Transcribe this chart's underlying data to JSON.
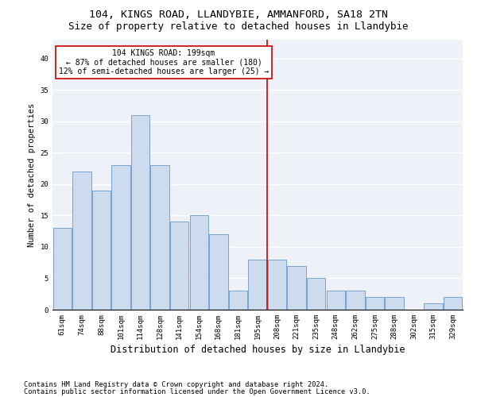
{
  "title1": "104, KINGS ROAD, LLANDYBIE, AMMANFORD, SA18 2TN",
  "title2": "Size of property relative to detached houses in Llandybie",
  "xlabel": "Distribution of detached houses by size in Llandybie",
  "ylabel": "Number of detached properties",
  "categories": [
    "61sqm",
    "74sqm",
    "88sqm",
    "101sqm",
    "114sqm",
    "128sqm",
    "141sqm",
    "154sqm",
    "168sqm",
    "181sqm",
    "195sqm",
    "208sqm",
    "221sqm",
    "235sqm",
    "248sqm",
    "262sqm",
    "275sqm",
    "288sqm",
    "302sqm",
    "315sqm",
    "329sqm"
  ],
  "values": [
    13,
    22,
    19,
    23,
    31,
    23,
    14,
    15,
    12,
    3,
    8,
    8,
    7,
    5,
    3,
    3,
    2,
    2,
    0,
    1,
    2
  ],
  "bar_color": "#ccdcee",
  "bar_edge_color": "#6699cc",
  "bar_linewidth": 0.6,
  "vline_color": "#cc0000",
  "vline_x_index": 10.5,
  "annotation_line1": "104 KINGS ROAD: 199sqm",
  "annotation_line2": "← 87% of detached houses are smaller (180)",
  "annotation_line3": "12% of semi-detached houses are larger (25) →",
  "annotation_box_color": "#cc0000",
  "ylim": [
    0,
    43
  ],
  "yticks": [
    0,
    5,
    10,
    15,
    20,
    25,
    30,
    35,
    40
  ],
  "bg_color": "#eef2f8",
  "footer1": "Contains HM Land Registry data © Crown copyright and database right 2024.",
  "footer2": "Contains public sector information licensed under the Open Government Licence v3.0.",
  "title1_fontsize": 9.5,
  "title2_fontsize": 9,
  "xlabel_fontsize": 8.5,
  "ylabel_fontsize": 7.5,
  "tick_fontsize": 6.5,
  "annotation_fontsize": 7,
  "footer_fontsize": 6.2
}
